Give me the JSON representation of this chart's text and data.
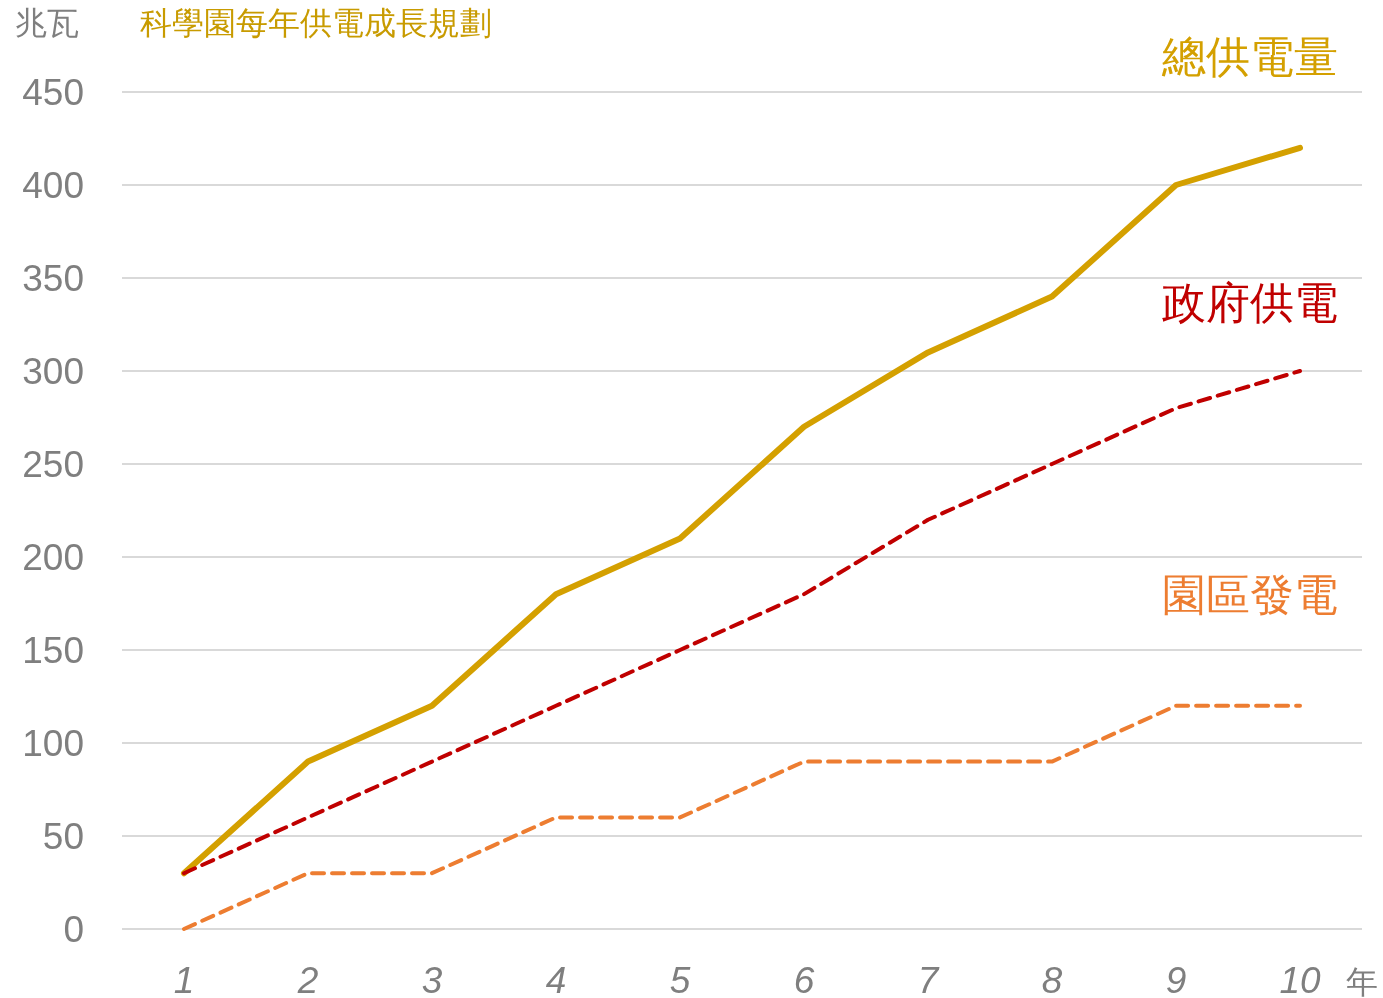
{
  "chart_data": {
    "type": "line",
    "title": "科學園每年供電成長規劃",
    "ylabel": "兆瓦",
    "xlabel": "年",
    "categories": [
      "1",
      "2",
      "3",
      "4",
      "5",
      "6",
      "7",
      "8",
      "9",
      "10"
    ],
    "series": [
      {
        "name": "總供電量",
        "color": "#d4a000",
        "line_style": "solid",
        "values": [
          30,
          90,
          120,
          180,
          210,
          270,
          310,
          340,
          400,
          420
        ]
      },
      {
        "name": "政府供電",
        "color": "#c00000",
        "line_style": "dashed",
        "values": [
          30,
          60,
          90,
          120,
          150,
          180,
          220,
          250,
          280,
          300
        ]
      },
      {
        "name": "園區發電",
        "color": "#ed7d31",
        "line_style": "dashed",
        "values": [
          0,
          30,
          30,
          60,
          60,
          90,
          90,
          90,
          120,
          120
        ]
      }
    ],
    "ylim": [
      0,
      450
    ],
    "yticks": [
      0,
      50,
      100,
      150,
      200,
      250,
      300,
      350,
      400,
      450
    ],
    "grid": "y",
    "legend": false,
    "marker": "none"
  }
}
